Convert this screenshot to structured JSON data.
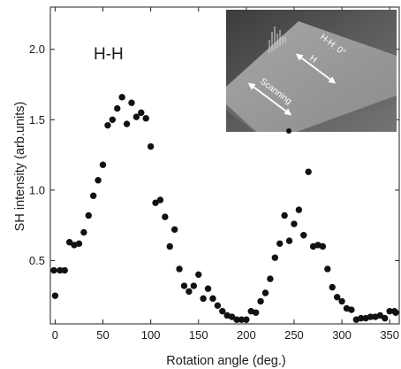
{
  "chart_data": {
    "type": "scatter",
    "panel_label": "H-H",
    "xlabel": "Rotation angle (deg.)",
    "ylabel": "SH intensity (arb.units)",
    "xlim": [
      -5,
      360
    ],
    "ylim": [
      0.05,
      2.3
    ],
    "x_ticks": [
      0,
      50,
      100,
      150,
      200,
      250,
      300,
      350
    ],
    "y_ticks": [
      0.5,
      1.0,
      1.5,
      2.0
    ],
    "x_tick_labels": [
      "0",
      "50",
      "100",
      "150",
      "200",
      "250",
      "300",
      "350"
    ],
    "y_tick_labels": [
      "0.5",
      "1.0",
      "1.5",
      "2.0"
    ],
    "grid": false,
    "marker_color": "#111111",
    "series": [
      {
        "x": [
          -5,
          0,
          5,
          10,
          15,
          20,
          25,
          30,
          35,
          40,
          45,
          50,
          55,
          60,
          65,
          70,
          75,
          80,
          85,
          90,
          95,
          100,
          105,
          110,
          115,
          120,
          125,
          130,
          135,
          140,
          145,
          150,
          155,
          160,
          165,
          170,
          175,
          180,
          185,
          190,
          195,
          200,
          205,
          210,
          215,
          220,
          225,
          230,
          235,
          240,
          245,
          250,
          255,
          260,
          265,
          270,
          275,
          280,
          285,
          290,
          295,
          300,
          305,
          310,
          315,
          320,
          325,
          330,
          335,
          340,
          345,
          350,
          355,
          360
        ],
        "y": [
          0.43,
          0.25,
          0.43,
          0.43,
          0.63,
          0.61,
          0.62,
          0.7,
          0.82,
          0.96,
          1.07,
          1.18,
          1.46,
          1.5,
          1.58,
          1.66,
          1.47,
          1.62,
          1.52,
          1.55,
          1.51,
          1.31,
          0.91,
          0.93,
          0.81,
          0.6,
          0.72,
          0.44,
          0.32,
          0.28,
          0.32,
          0.4,
          0.23,
          0.3,
          0.23,
          0.18,
          0.14,
          0.11,
          0.1,
          0.08,
          0.08,
          0.08,
          0.14,
          0.13,
          0.21,
          0.27,
          0.37,
          0.52,
          0.62,
          0.82,
          0.64,
          0.76,
          0.86,
          0.68,
          1.13,
          0.6,
          0.61,
          0.6,
          0.44,
          0.31,
          0.24,
          0.21,
          0.16,
          0.15,
          0.08,
          0.09,
          0.09,
          0.1,
          0.1,
          0.11,
          0.09,
          0.14,
          0.14,
          0.13
        ]
      }
    ]
  },
  "inset": {
    "angle_label": "H-H: 0°",
    "field_label": "H",
    "scan_label": "Scanning"
  }
}
